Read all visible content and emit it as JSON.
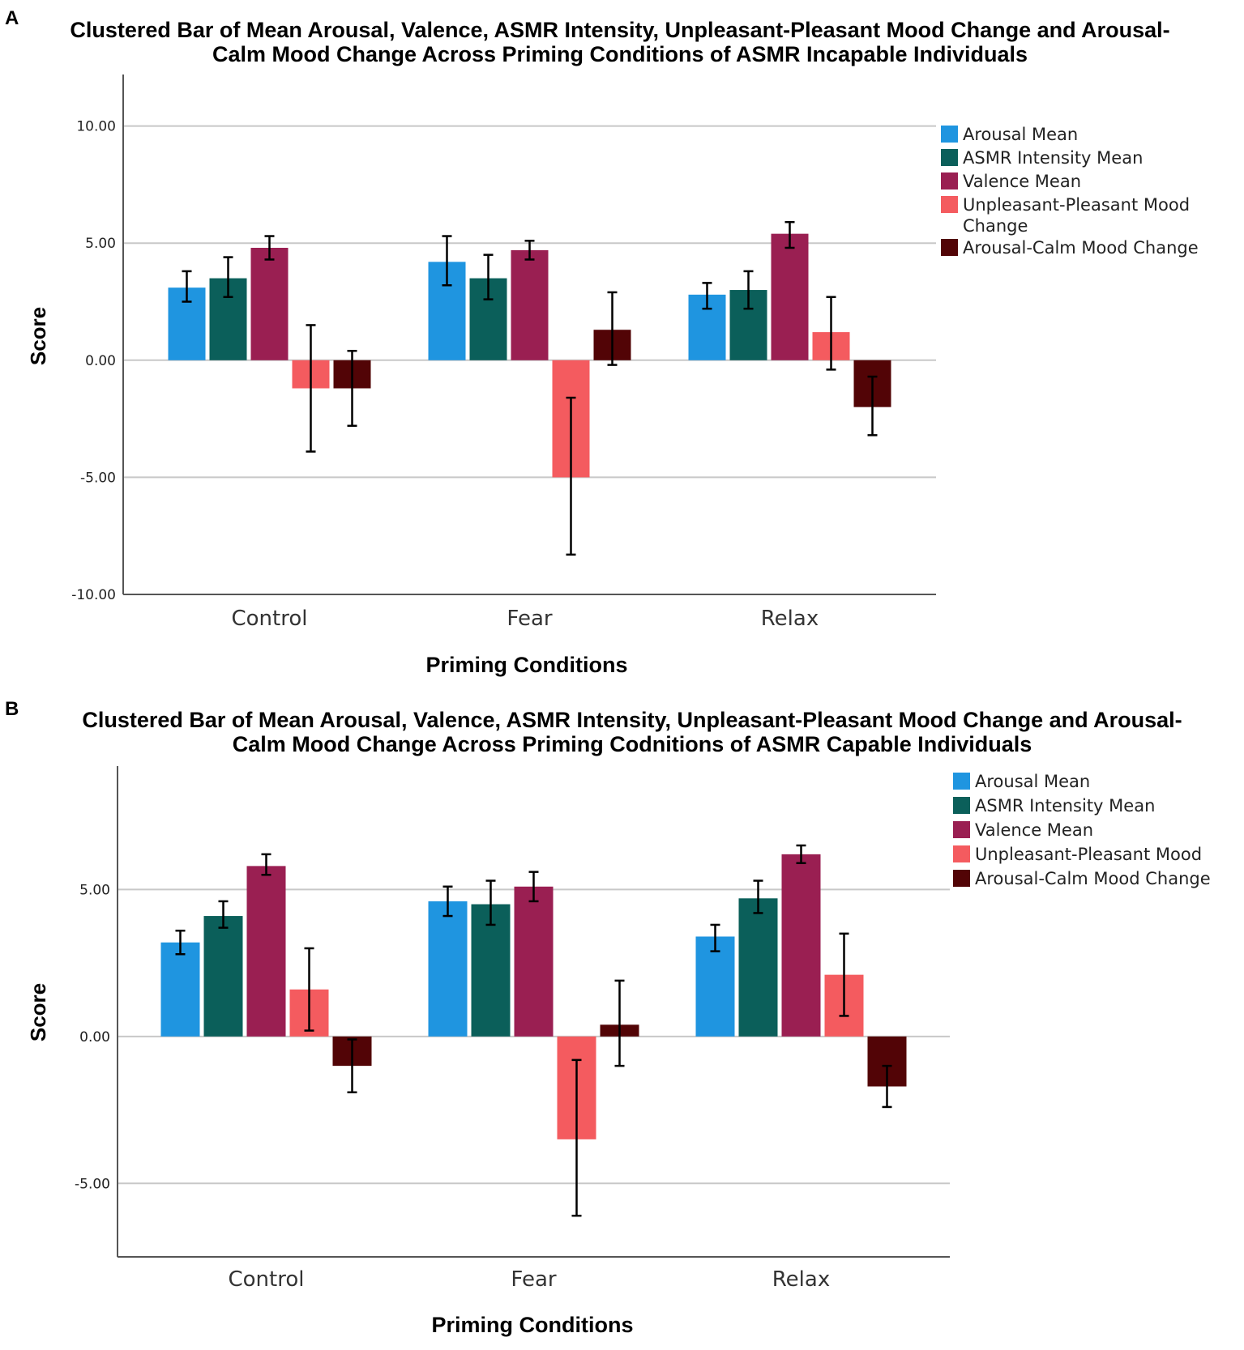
{
  "colors": {
    "Arousal Mean": "#1f95e0",
    "ASMR Intensity Mean": "#0b5f5a",
    "Valence Mean": "#9a1f52",
    "Unpleasant-Pleasant Mood Change": "#f45b5f",
    "Arousal-Calm Mood Change": "#520406"
  },
  "chart_data": [
    {
      "panel": "A",
      "type": "bar",
      "title_lines": [
        "Clustered Bar of Mean Arousal, Valence, ASMR Intensity, Unpleasant-Pleasant Mood Change and Arousal-",
        "Calm Mood Change Across Priming Conditions of ASMR Incapable Individuals"
      ],
      "xlabel": "Priming Conditions",
      "ylabel": "Score",
      "ylim": [
        -10,
        12.2
      ],
      "yticks": [
        10,
        5,
        0,
        -5,
        -10
      ],
      "ytick_labels": [
        "10.00",
        "5.00",
        "0.00",
        "-5.00",
        "-10.00"
      ],
      "grid": true,
      "categories": [
        "Control",
        "Fear",
        "Relax"
      ],
      "legend": [
        {
          "key": "Arousal Mean",
          "lines": [
            "Arousal Mean"
          ]
        },
        {
          "key": "ASMR Intensity Mean",
          "lines": [
            "ASMR Intensity Mean"
          ]
        },
        {
          "key": "Valence Mean",
          "lines": [
            "Valence Mean"
          ]
        },
        {
          "key": "Unpleasant-Pleasant Mood Change",
          "lines": [
            "Unpleasant-Pleasant Mood",
            "Change"
          ]
        },
        {
          "key": "Arousal-Calm Mood Change",
          "lines": [
            "Arousal-Calm Mood Change"
          ]
        }
      ],
      "series": [
        {
          "name": "Arousal Mean",
          "values": [
            3.1,
            4.2,
            2.8
          ],
          "err_low": [
            2.5,
            3.2,
            2.2
          ],
          "err_high": [
            3.8,
            5.3,
            3.3
          ]
        },
        {
          "name": "ASMR Intensity Mean",
          "values": [
            3.5,
            3.5,
            3.0
          ],
          "err_low": [
            2.7,
            2.6,
            2.2
          ],
          "err_high": [
            4.4,
            4.5,
            3.8
          ]
        },
        {
          "name": "Valence Mean",
          "values": [
            4.8,
            4.7,
            5.4
          ],
          "err_low": [
            4.3,
            4.3,
            4.8
          ],
          "err_high": [
            5.3,
            5.1,
            5.9
          ]
        },
        {
          "name": "Unpleasant-Pleasant Mood Change",
          "values": [
            -1.2,
            -5.0,
            1.2
          ],
          "err_low": [
            -3.9,
            -8.3,
            -0.4
          ],
          "err_high": [
            1.5,
            -1.6,
            2.7
          ]
        },
        {
          "name": "Arousal-Calm Mood Change",
          "values": [
            -1.2,
            1.3,
            -2.0
          ],
          "err_low": [
            -2.8,
            -0.2,
            -3.2
          ],
          "err_high": [
            0.4,
            2.9,
            -0.7
          ]
        }
      ]
    },
    {
      "panel": "B",
      "type": "bar",
      "title_lines": [
        "Clustered Bar of Mean Arousal, Valence, ASMR Intensity, Unpleasant-Pleasant Mood Change and Arousal-",
        "Calm Mood Change Across Priming Codnitions of ASMR Capable Individuals"
      ],
      "xlabel": "Priming Conditions",
      "ylabel": "Score",
      "ylim": [
        -7.5,
        9.2
      ],
      "yticks": [
        5,
        0,
        -5
      ],
      "ytick_labels": [
        "5.00",
        "0.00",
        "-5.00"
      ],
      "grid": true,
      "categories": [
        "Control",
        "Fear",
        "Relax"
      ],
      "legend": [
        {
          "key": "Arousal Mean",
          "lines": [
            "Arousal Mean"
          ]
        },
        {
          "key": "ASMR Intensity Mean",
          "lines": [
            "ASMR Intensity Mean"
          ]
        },
        {
          "key": "Valence Mean",
          "lines": [
            "Valence Mean"
          ]
        },
        {
          "key": "Unpleasant-Pleasant Mood Change",
          "lines": [
            "Unpleasant-Pleasant Mood"
          ]
        },
        {
          "key": "Arousal-Calm Mood Change",
          "lines": [
            "Arousal-Calm Mood Change"
          ]
        }
      ],
      "series": [
        {
          "name": "Arousal Mean",
          "values": [
            3.2,
            4.6,
            3.4
          ],
          "err_low": [
            2.8,
            4.1,
            2.9
          ],
          "err_high": [
            3.6,
            5.1,
            3.8
          ]
        },
        {
          "name": "ASMR Intensity Mean",
          "values": [
            4.1,
            4.5,
            4.7
          ],
          "err_low": [
            3.7,
            3.8,
            4.2
          ],
          "err_high": [
            4.6,
            5.3,
            5.3
          ]
        },
        {
          "name": "Valence Mean",
          "values": [
            5.8,
            5.1,
            6.2
          ],
          "err_low": [
            5.5,
            4.6,
            5.9
          ],
          "err_high": [
            6.2,
            5.6,
            6.5
          ]
        },
        {
          "name": "Unpleasant-Pleasant Mood Change",
          "values": [
            1.6,
            -3.5,
            2.1
          ],
          "err_low": [
            0.2,
            -6.1,
            0.7
          ],
          "err_high": [
            3.0,
            -0.8,
            3.5
          ]
        },
        {
          "name": "Arousal-Calm Mood Change",
          "values": [
            -1.0,
            0.4,
            -1.7
          ],
          "err_low": [
            -1.9,
            -1.0,
            -2.4
          ],
          "err_high": [
            -0.1,
            1.9,
            -1.0
          ]
        }
      ]
    }
  ]
}
